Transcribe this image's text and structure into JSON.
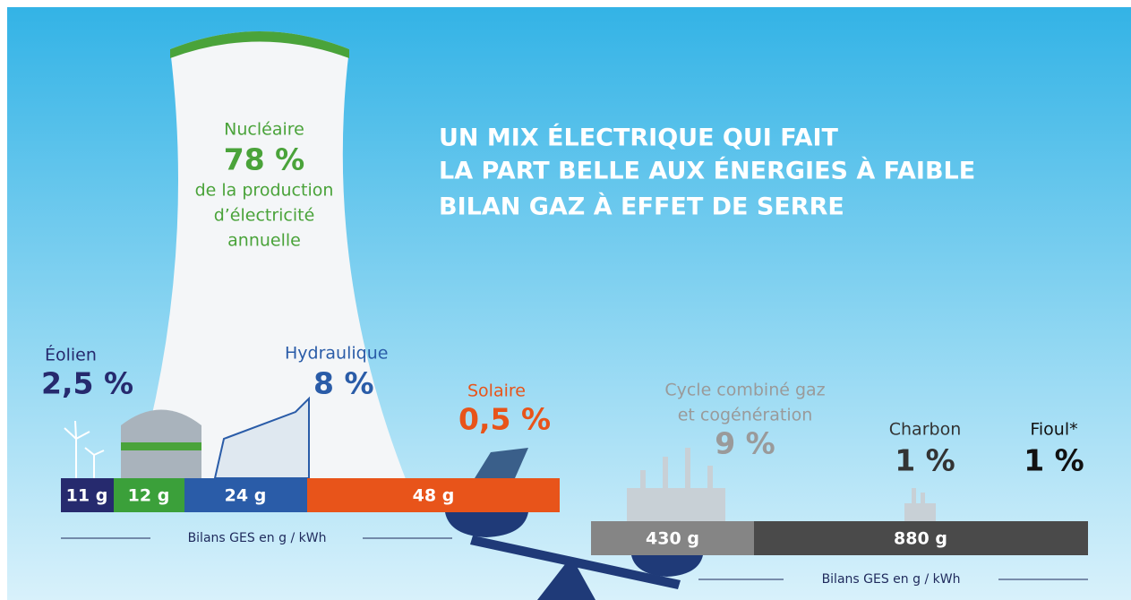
{
  "title_lines": [
    "UN MIX ÉLECTRIQUE QUI FAIT",
    "LA PART BELLE AUX ÉNERGIES À FAIBLE",
    "BILAN GAZ À EFFET DE SERRE"
  ],
  "nuclear": {
    "name": "Nucléaire",
    "share": "78 %",
    "description_lines": [
      "de la production",
      "d’électricité",
      "annuelle"
    ]
  },
  "sources": [
    {
      "name_lines": [
        "Éolien"
      ],
      "share": "2,5 %"
    },
    {
      "name_lines": [
        "Hydraulique"
      ],
      "share": "8 %"
    },
    {
      "name_lines": [
        "Solaire"
      ],
      "share": "0,5 %"
    },
    {
      "name_lines": [
        "Cycle combiné gaz",
        "et cogénération"
      ],
      "share": "9 %"
    },
    {
      "name_lines": [
        "Charbon"
      ],
      "share": "1 %"
    },
    {
      "name_lines": [
        "Fioul*"
      ],
      "share": "1 %"
    }
  ],
  "low_carbon_bar": [
    "11 g",
    "12 g",
    "24 g",
    "48 g"
  ],
  "fossil_bar": [
    "430 g",
    "880 g"
  ],
  "caption_low": "Bilans GES en g / kWh",
  "caption_fossil": "Bilans GES en g / kWh"
}
